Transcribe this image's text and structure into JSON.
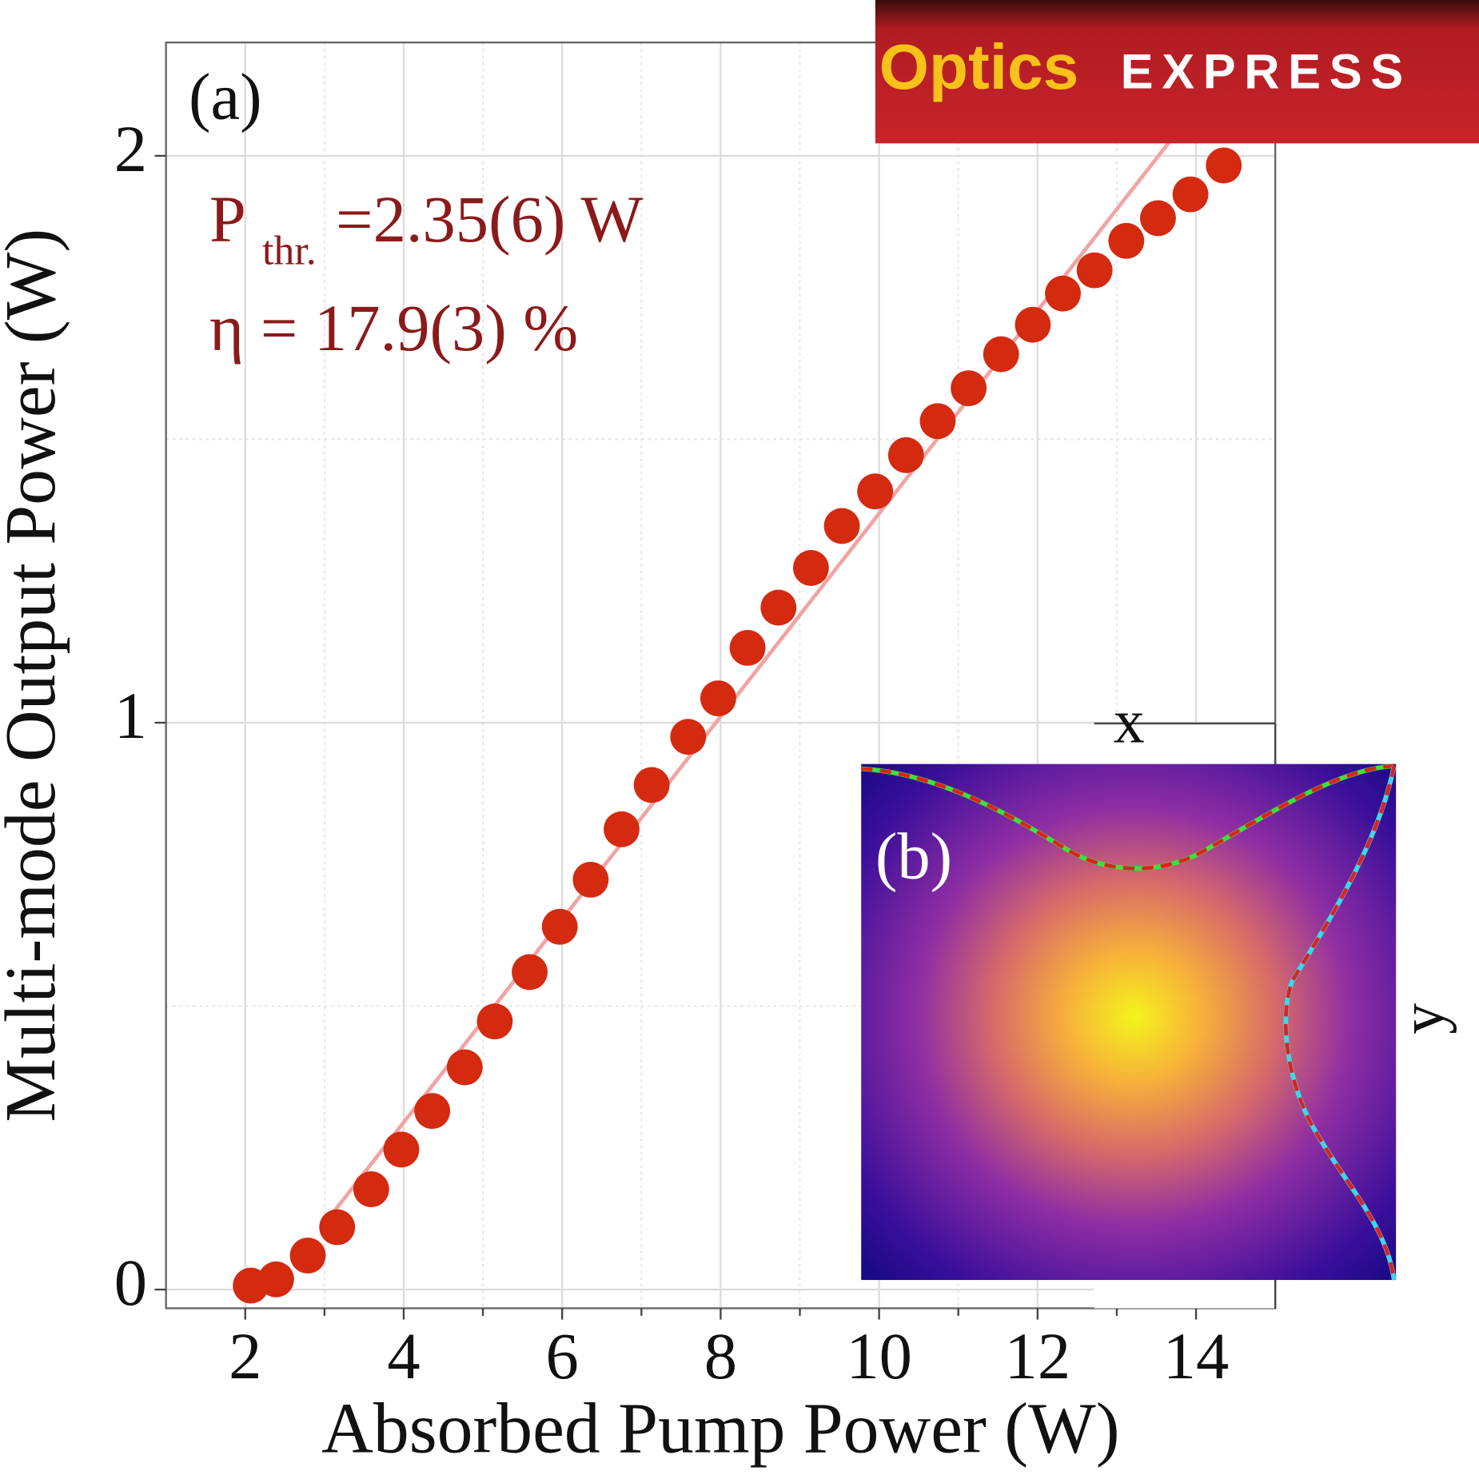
{
  "chart_data": {
    "type": "scatter",
    "x_label": "Absorbed Pump Power (W)",
    "y_label": "Multi-mode Output Power (W)",
    "x": [
      2.07,
      2.39,
      2.79,
      3.16,
      3.59,
      3.97,
      4.36,
      4.77,
      5.15,
      5.59,
      5.97,
      6.36,
      6.75,
      7.13,
      7.59,
      7.97,
      8.34,
      8.73,
      9.14,
      9.53,
      9.95,
      10.34,
      10.74,
      11.13,
      11.54,
      11.94,
      12.32,
      12.72,
      13.12,
      13.52,
      13.93,
      14.35
    ],
    "series": [
      {
        "color": "#d42a10",
        "values": [
          0.007,
          0.018,
          0.06,
          0.11,
          0.177,
          0.247,
          0.315,
          0.392,
          0.473,
          0.56,
          0.64,
          0.723,
          0.812,
          0.89,
          0.975,
          1.043,
          1.132,
          1.203,
          1.273,
          1.347,
          1.408,
          1.472,
          1.532,
          1.59,
          1.65,
          1.702,
          1.757,
          1.798,
          1.85,
          1.89,
          1.932,
          1.983
        ]
      }
    ],
    "fit": {
      "color": "#f2a3a3",
      "x": [
        3.1,
        14.8
      ],
      "values": [
        0.134,
        2.228
      ]
    },
    "xlim": [
      1,
      15
    ],
    "ylim": [
      -0.033,
      2.2
    ],
    "xticks": [
      2,
      4,
      6,
      8,
      10,
      12,
      14
    ],
    "yticks": [
      0,
      1,
      2
    ],
    "xminorticks": [
      3,
      5,
      7,
      9,
      11,
      13
    ],
    "yminorticks": [
      0.5,
      1.5
    ],
    "grid": true,
    "annotations": {
      "panel": "(a)",
      "threshold_symbol": "P",
      "threshold_subscript": "thr.",
      "threshold_value": "=2.35(6) W",
      "efficiency": "η = 17.9(3) %"
    },
    "inset": {
      "panel": "(b)",
      "x_label": "x",
      "y_label": "y"
    },
    "logo": {
      "word1": "Optics",
      "word2": "EXPRESS"
    }
  }
}
